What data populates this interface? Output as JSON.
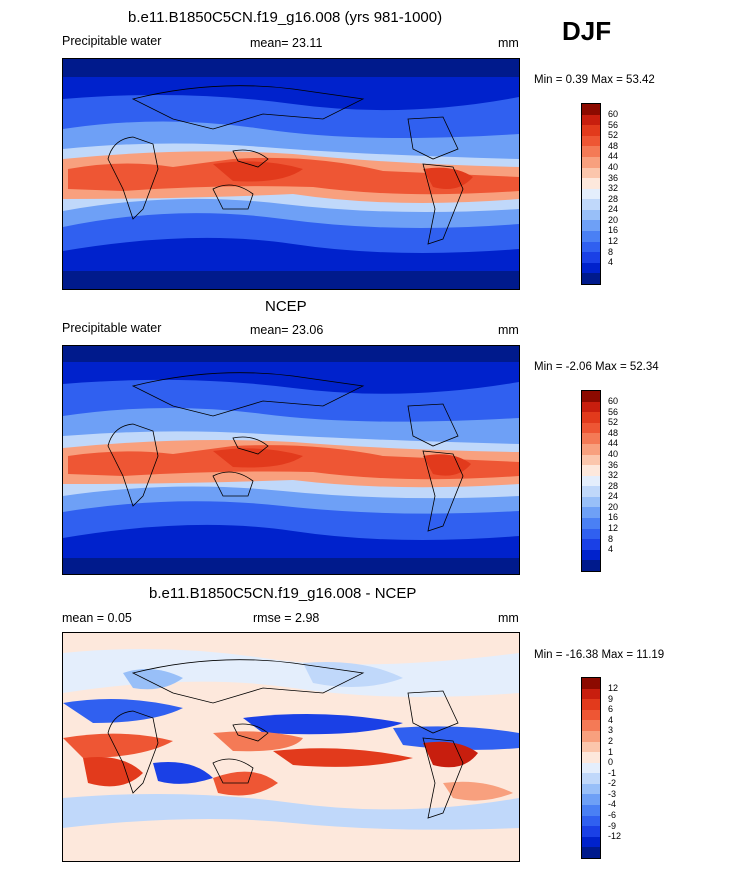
{
  "season": "DJF",
  "colors": {
    "abs": [
      "#001a8c",
      "#0022cc",
      "#1a40e6",
      "#3060f0",
      "#4a80f4",
      "#6ea0f6",
      "#98bff8",
      "#c0d8fa",
      "#e4eefc",
      "#fde8dc",
      "#fbc6ac",
      "#f8a07e",
      "#f47a56",
      "#ee5634",
      "#e23a1c",
      "#c81e0e",
      "#8c0a00"
    ],
    "diff": [
      "#001a8c",
      "#0022cc",
      "#1a40e6",
      "#3060f0",
      "#4a80f4",
      "#6ea0f6",
      "#98bff8",
      "#c0d8fa",
      "#e4eefc",
      "#fde8dc",
      "#fbc6ac",
      "#f8a07e",
      "#f47a56",
      "#ee5634",
      "#e23a1c",
      "#c81e0e",
      "#8c0a00"
    ]
  },
  "panels": [
    {
      "title": "b.e11.B1850C5CN.f19_g16.008 (yrs 981-1000)",
      "left_label": "Precipitable water",
      "mean_text": "mean=  23.11",
      "units": "mm",
      "minmax": "Min =   0.39 Max =   53.42",
      "colorbar_labels": [
        "60",
        "56",
        "52",
        "48",
        "44",
        "40",
        "36",
        "32",
        "28",
        "24",
        "20",
        "16",
        "12",
        "8",
        "4"
      ]
    },
    {
      "title": "NCEP",
      "left_label": "Precipitable water",
      "mean_text": "mean=  23.06",
      "units": "mm",
      "minmax": "Min =  -2.06 Max =   52.34",
      "colorbar_labels": [
        "60",
        "56",
        "52",
        "48",
        "44",
        "40",
        "36",
        "32",
        "28",
        "24",
        "20",
        "16",
        "12",
        "8",
        "4"
      ]
    },
    {
      "title": "b.e11.B1850C5CN.f19_g16.008 - NCEP",
      "left_label": "mean =   0.05",
      "mean_text": "rmse =    2.98",
      "units": "mm",
      "minmax": "Min = -16.38 Max =   11.19",
      "colorbar_labels": [
        "12",
        "9",
        "6",
        "4",
        "3",
        "2",
        "1",
        "0",
        "-1",
        "-2",
        "-3",
        "-4",
        "-6",
        "-9",
        "-12"
      ]
    }
  ]
}
